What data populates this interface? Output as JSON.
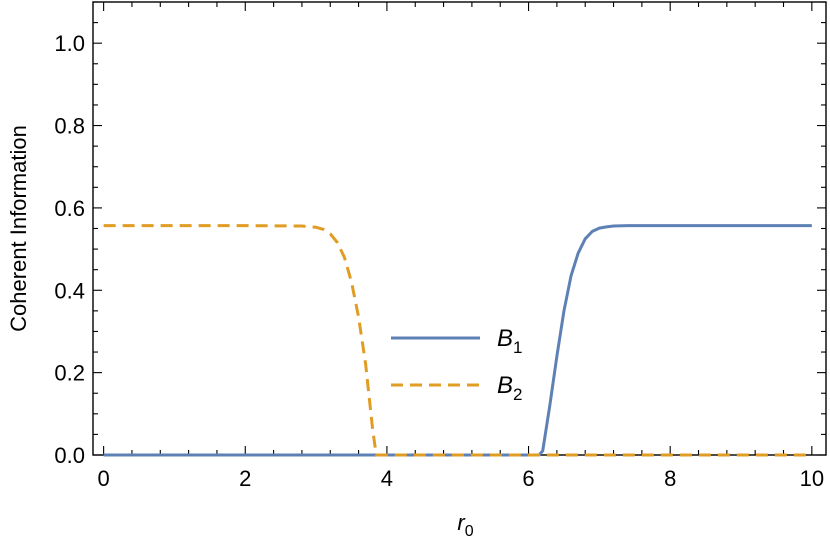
{
  "chart_data": {
    "type": "line",
    "xlabel": "r",
    "xlabel_sub": "0",
    "ylabel": "Coherent Information",
    "xlim": [
      -0.15,
      10.2
    ],
    "ylim": [
      0,
      1.1
    ],
    "x_ticks": [
      "0",
      "2",
      "4",
      "6",
      "8",
      "10"
    ],
    "y_ticks": [
      "0.0",
      "0.2",
      "0.4",
      "0.6",
      "0.8",
      "1.0"
    ],
    "grid": false,
    "legend_position": "center",
    "series": [
      {
        "name": "B",
        "name_sub": "1",
        "color": "#5e81b5",
        "dash": "solid",
        "x": [
          0,
          6.0,
          6.15,
          6.2,
          6.3,
          6.4,
          6.5,
          6.6,
          6.7,
          6.8,
          6.9,
          7.0,
          7.1,
          7.2,
          7.4,
          7.6,
          8.0,
          10.0
        ],
        "y": [
          0,
          0,
          0,
          0.01,
          0.12,
          0.24,
          0.35,
          0.435,
          0.49,
          0.525,
          0.543,
          0.551,
          0.554,
          0.556,
          0.557,
          0.557,
          0.557,
          0.557
        ]
      },
      {
        "name": "B",
        "name_sub": "2",
        "color": "#e19c24",
        "dash": "dashed",
        "x": [
          0,
          2.0,
          2.8,
          3.0,
          3.1,
          3.2,
          3.3,
          3.4,
          3.5,
          3.6,
          3.7,
          3.8,
          3.85,
          3.9,
          10.0
        ],
        "y": [
          0.557,
          0.557,
          0.556,
          0.553,
          0.548,
          0.537,
          0.516,
          0.48,
          0.42,
          0.335,
          0.22,
          0.06,
          0,
          0,
          0
        ]
      }
    ]
  }
}
